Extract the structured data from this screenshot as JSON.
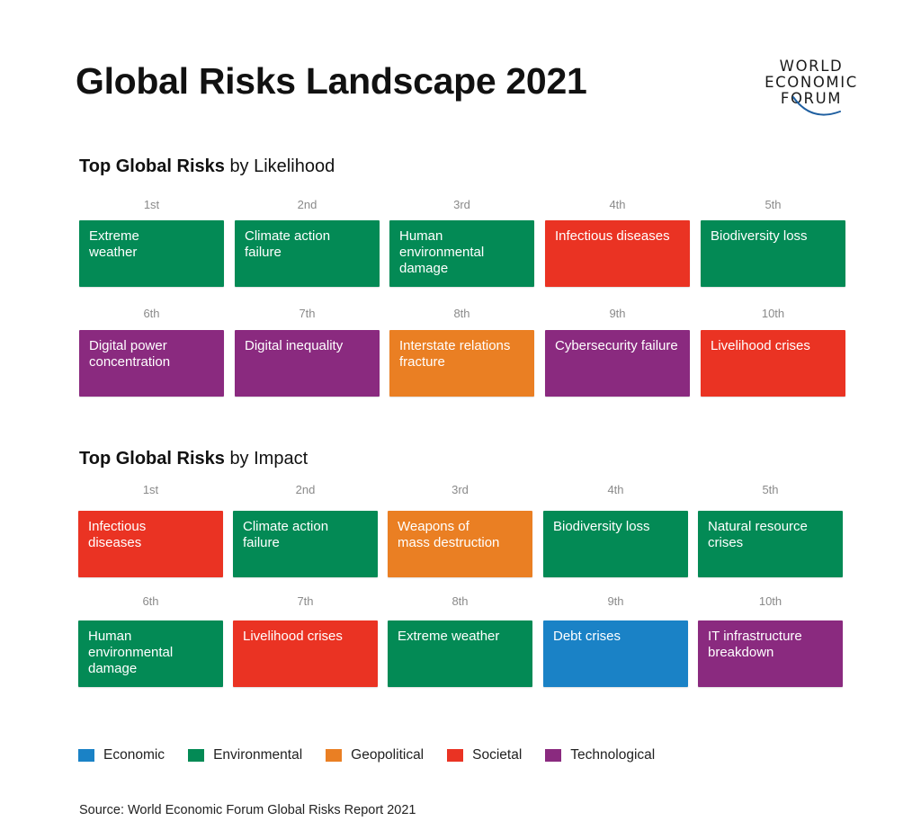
{
  "title": "Global Risks Landscape 2021",
  "logo": {
    "line1": "WORLD",
    "line2": "ECONOMIC",
    "line3": "FORUM"
  },
  "colors": {
    "economic": "#1a82c6",
    "environmental": "#038a55",
    "geopolitical": "#ea7f23",
    "societal": "#ea3323",
    "technological": "#8a2a7f"
  },
  "likelihood": {
    "title_bold": "Top Global Risks",
    "title_rest": "by Likelihood",
    "items": [
      {
        "rank": "1st",
        "label": "Extreme weather",
        "category": "environmental"
      },
      {
        "rank": "2nd",
        "label": "Climate action failure",
        "category": "environmental"
      },
      {
        "rank": "3rd",
        "label": "Human environmental damage",
        "category": "environmental"
      },
      {
        "rank": "4th",
        "label": "Infectious diseases",
        "category": "societal"
      },
      {
        "rank": "5th",
        "label": "Biodiversity loss",
        "category": "environmental"
      },
      {
        "rank": "6th",
        "label": "Digital power concentration",
        "category": "technological"
      },
      {
        "rank": "7th",
        "label": "Digital inequality",
        "category": "technological"
      },
      {
        "rank": "8th",
        "label": "Interstate relations fracture",
        "category": "geopolitical"
      },
      {
        "rank": "9th",
        "label": "Cybersecurity failure",
        "category": "technological"
      },
      {
        "rank": "10th",
        "label": "Livelihood crises",
        "category": "societal"
      }
    ]
  },
  "impact": {
    "title_bold": "Top Global Risks",
    "title_rest": "by Impact",
    "items": [
      {
        "rank": "1st",
        "label": "Infectious diseases",
        "category": "societal"
      },
      {
        "rank": "2nd",
        "label": "Climate action failure",
        "category": "environmental"
      },
      {
        "rank": "3rd",
        "label": "Weapons of mass destruction",
        "category": "geopolitical"
      },
      {
        "rank": "4th",
        "label": "Biodiversity loss",
        "category": "environmental"
      },
      {
        "rank": "5th",
        "label": "Natural resource crises",
        "category": "environmental"
      },
      {
        "rank": "6th",
        "label": "Human environmental damage",
        "category": "environmental"
      },
      {
        "rank": "7th",
        "label": "Livelihood crises",
        "category": "societal"
      },
      {
        "rank": "8th",
        "label": "Extreme weather",
        "category": "environmental"
      },
      {
        "rank": "9th",
        "label": "Debt crises",
        "category": "economic"
      },
      {
        "rank": "10th",
        "label": "IT infrastructure breakdown",
        "category": "technological"
      }
    ]
  },
  "legend": [
    {
      "label": "Economic",
      "category": "economic"
    },
    {
      "label": "Environmental",
      "category": "environmental"
    },
    {
      "label": "Geopolitical",
      "category": "geopolitical"
    },
    {
      "label": "Societal",
      "category": "societal"
    },
    {
      "label": "Technological",
      "category": "technological"
    }
  ],
  "source": "Source: World Economic Forum Global Risks Report 2021"
}
